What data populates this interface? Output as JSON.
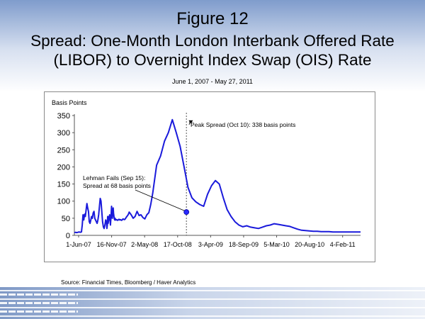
{
  "header": {
    "figure_label": "Figure 12",
    "title_line1": "Spread:  One-Month London Interbank Offered Rate",
    "title_line2": "(LIBOR) to Overnight Index Swap (OIS) Rate",
    "date_range": "June 1, 2007 - May 27, 2011"
  },
  "source": "Source:  Financial Times, Bloomberg / Haver Analytics",
  "colors": {
    "line": "#1a1adb",
    "marker": "#2a2aff",
    "axis": "#555555"
  },
  "chart_data": {
    "type": "line",
    "title": "Spread:  One-Month London Interbank Offered Rate (LIBOR) to Overnight Index Swap (OIS) Rate",
    "ylabel": "Basis Points",
    "xlabel": "",
    "ylim": [
      0,
      350
    ],
    "yticks": [
      0,
      50,
      100,
      150,
      200,
      250,
      300,
      350
    ],
    "xticks": [
      "1-Jun-07",
      "16-Nov-07",
      "2-May-08",
      "17-Oct-08",
      "3-Apr-09",
      "18-Sep-09",
      "5-Mar-10",
      "20-Aug-10",
      "4-Feb-11"
    ],
    "grid": false,
    "series": [
      {
        "name": "LIBOR-OIS spread",
        "x": [
          0,
          6,
          12,
          18,
          24,
          30,
          36,
          40,
          44,
          48,
          52,
          56,
          60,
          64,
          68,
          72,
          76,
          80,
          84,
          88,
          92,
          96,
          100,
          104,
          108,
          112,
          116,
          120,
          124,
          128,
          132,
          136,
          140,
          144,
          148,
          152,
          156,
          160,
          164,
          166,
          168,
          170,
          172,
          174,
          176,
          178,
          180,
          182,
          184,
          186,
          188,
          190,
          192,
          194,
          196,
          198,
          200,
          202,
          204,
          206,
          208,
          210,
          212,
          216,
          220,
          224,
          228,
          232,
          236,
          240,
          244,
          248,
          252,
          256,
          260,
          264,
          268,
          272,
          276,
          280,
          290,
          300,
          310,
          320,
          330,
          340,
          350,
          360,
          370,
          380,
          390,
          400,
          420,
          440,
          460,
          480,
          500,
          520,
          540,
          560,
          580,
          600,
          620,
          640,
          660,
          680,
          700,
          720,
          740,
          760,
          780,
          800,
          820,
          840,
          860,
          880,
          900,
          920,
          940,
          960,
          980,
          1000,
          1020,
          1040,
          1060,
          1080,
          1100,
          1120,
          1140,
          1160,
          1180,
          1200,
          1220,
          1240,
          1260,
          1280,
          1300,
          1320,
          1340,
          1360,
          1380,
          1400,
          1420,
          1440,
          1461
        ],
        "values": [
          8,
          9,
          8,
          9,
          10,
          9,
          10,
          30,
          60,
          45,
          62,
          55,
          75,
          93,
          80,
          70,
          40,
          35,
          45,
          55,
          50,
          65,
          70,
          50,
          45,
          40,
          35,
          45,
          60,
          85,
          108,
          100,
          70,
          40,
          25,
          20,
          30,
          45,
          40,
          20,
          30,
          55,
          35,
          40,
          55,
          45,
          60,
          50,
          30,
          45,
          65,
          85,
          60,
          50,
          70,
          80,
          65,
          55,
          48,
          45,
          50,
          45,
          45,
          46,
          44,
          45,
          47,
          45,
          46,
          44,
          45,
          48,
          47,
          46,
          48,
          52,
          55,
          58,
          62,
          68,
          60,
          50,
          55,
          70,
          58,
          60,
          52,
          48,
          60,
          66,
          90,
          123,
          205,
          232,
          275,
          300,
          338,
          300,
          260,
          200,
          140,
          110,
          98,
          90,
          85,
          120,
          145,
          160,
          150,
          110,
          75,
          55,
          40,
          30,
          25,
          28,
          24,
          22,
          20,
          24,
          28,
          30,
          34,
          32,
          30,
          28,
          26,
          22,
          18,
          15,
          14,
          13,
          12,
          12,
          11,
          11,
          11,
          10,
          10,
          10,
          10,
          10,
          10,
          10,
          10
        ]
      }
    ],
    "annotations": [
      {
        "text_line1": "Peak Spread (Oct 10):  338 basis points",
        "x": 580,
        "y": 338
      },
      {
        "text_line1": "Lehman Fails (Sep 15):",
        "text_line2": "Spread at 68 basis points",
        "x": 572,
        "y": 68
      }
    ]
  }
}
